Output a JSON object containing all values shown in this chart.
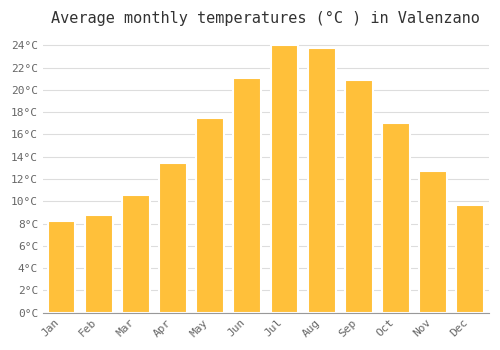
{
  "title": "Average monthly temperatures (°C ) in Valenzano",
  "months": [
    "Jan",
    "Feb",
    "Mar",
    "Apr",
    "May",
    "Jun",
    "Jul",
    "Aug",
    "Sep",
    "Oct",
    "Nov",
    "Dec"
  ],
  "values": [
    8.2,
    8.8,
    10.6,
    13.4,
    17.5,
    21.1,
    24.0,
    23.8,
    20.9,
    17.0,
    12.7,
    9.7
  ],
  "bar_color": "#FFC03A",
  "bar_edge_color": "#FFFFFF",
  "background_color": "#FFFFFF",
  "plot_bg_color": "#FFFFFF",
  "grid_color": "#DDDDDD",
  "ylim": [
    0,
    25
  ],
  "ytick_step": 2,
  "title_fontsize": 11,
  "tick_fontsize": 8,
  "font_family": "monospace",
  "tick_color": "#666666",
  "title_color": "#333333"
}
